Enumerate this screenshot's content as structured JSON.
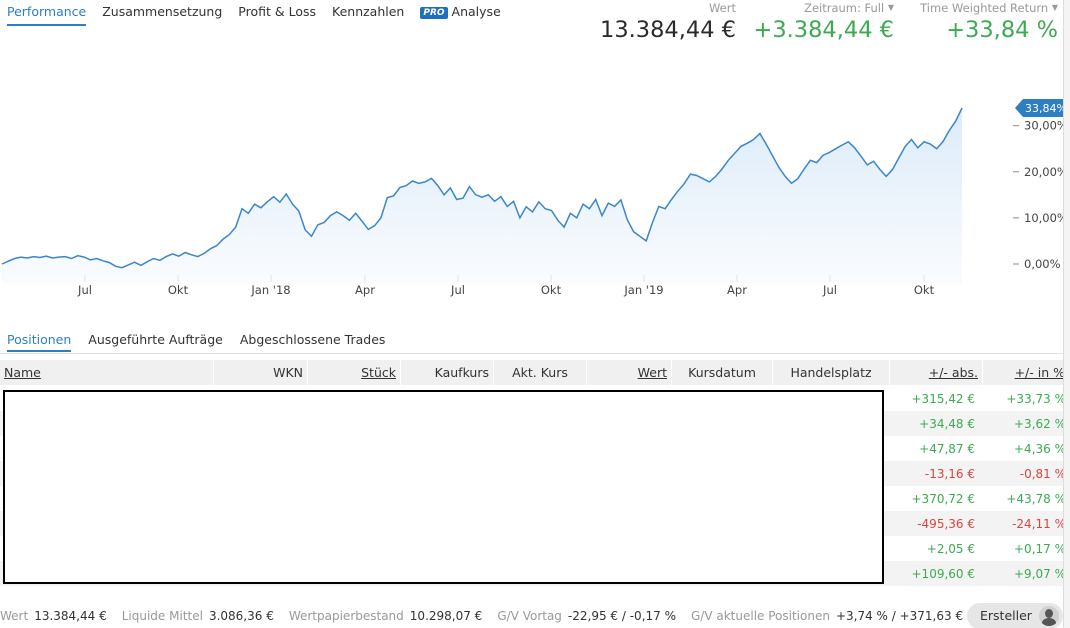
{
  "nav": {
    "tabs": [
      "Performance",
      "Zusammensetzung",
      "Profit & Loss",
      "Kennzahlen"
    ],
    "pro_badge": "PRO",
    "analyse_label": "Analyse"
  },
  "kpis": {
    "wert_label": "Wert",
    "wert_value": "13.384,44 €",
    "zeitraum_label": "Zeitraum: Full",
    "zeitraum_value": "+3.384,44 €",
    "twr_label": "Time Weighted Return",
    "twr_value": "+33,84 %",
    "caret": "▼"
  },
  "chart_data": {
    "type": "area",
    "x_tick_labels": [
      "Jul",
      "Okt",
      "Jan '18",
      "Apr",
      "Jul",
      "Okt",
      "Jan '19",
      "Apr",
      "Jul",
      "Okt"
    ],
    "y_tick_labels": [
      "0,00%",
      "10,00%",
      "20,00%",
      "30,00%"
    ],
    "y_ticks": [
      0,
      10,
      20,
      30
    ],
    "ylim": [
      -2,
      36
    ],
    "last_value_label": "33,84%",
    "line_color": "#3a86cc",
    "fill_color": "#dcebf9",
    "series": [
      {
        "values": [
          0.0,
          0.6,
          1.2,
          1.5,
          1.3,
          1.6,
          1.4,
          1.7,
          1.3,
          1.5,
          1.6,
          1.2,
          1.8,
          1.5,
          0.9,
          1.2,
          0.7,
          0.3,
          -0.5,
          -0.8,
          -0.2,
          0.4,
          -0.3,
          0.5,
          1.2,
          0.8,
          1.6,
          2.2,
          1.7,
          2.5,
          2.0,
          1.6,
          2.3,
          3.3,
          4.0,
          5.4,
          6.4,
          8.0,
          12.0,
          11.0,
          13.0,
          12.2,
          13.5,
          14.6,
          13.4,
          15.2,
          13.0,
          11.5,
          7.4,
          6.0,
          8.5,
          9.0,
          10.5,
          11.3,
          10.5,
          9.5,
          11.0,
          9.3,
          7.5,
          8.3,
          10.0,
          14.4,
          14.8,
          16.6,
          17.0,
          18.0,
          17.5,
          17.8,
          18.6,
          17.0,
          15.0,
          16.5,
          14.0,
          14.3,
          16.8,
          15.0,
          14.5,
          15.0,
          13.6,
          14.6,
          12.5,
          13.6,
          10.0,
          12.4,
          11.3,
          13.5,
          12.0,
          11.6,
          9.5,
          8.0,
          11.0,
          10.0,
          13.0,
          12.0,
          14.0,
          10.5,
          13.2,
          12.5,
          13.9,
          9.6,
          7.0,
          6.0,
          5.0,
          9.0,
          12.5,
          12.0,
          14.0,
          15.8,
          17.4,
          19.5,
          19.2,
          18.5,
          17.8,
          19.0,
          20.6,
          22.5,
          24.0,
          25.5,
          26.2,
          27.0,
          28.3,
          26.0,
          23.5,
          21.0,
          19.0,
          17.5,
          18.5,
          20.6,
          22.5,
          22.0,
          23.6,
          24.2,
          25.0,
          25.8,
          26.5,
          25.2,
          23.4,
          21.5,
          22.3,
          20.5,
          19.0,
          20.5,
          23.0,
          25.5,
          27.0,
          25.2,
          26.5,
          26.0,
          25.0,
          26.6,
          29.0,
          31.0,
          33.84
        ]
      }
    ]
  },
  "positions": {
    "tabs": [
      "Positionen",
      "Ausgeführte Aufträge",
      "Abgeschlossene Trades"
    ],
    "columns": [
      "Name",
      "WKN",
      "Stück",
      "Kaufkurs",
      "Akt. Kurs",
      "Wert",
      "Kursdatum",
      "Handelsplatz",
      "+/- abs.",
      "+/- in %"
    ],
    "rows": [
      {
        "abs": "+315,42 €",
        "pct": "+33,73 %",
        "positive": true
      },
      {
        "abs": "+34,48 €",
        "pct": "+3,62 %",
        "positive": true
      },
      {
        "abs": "+47,87 €",
        "pct": "+4,36 %",
        "positive": true
      },
      {
        "abs": "-13,16 €",
        "pct": "-0,81 %",
        "positive": false
      },
      {
        "abs": "+370,72 €",
        "pct": "+43,78 %",
        "positive": true
      },
      {
        "abs": "-495,36 €",
        "pct": "-24,11 %",
        "positive": false
      },
      {
        "abs": "+2,05 €",
        "pct": "+0,17 %",
        "positive": true
      },
      {
        "abs": "+109,60 €",
        "pct": "+9,07 %",
        "positive": true
      }
    ]
  },
  "footer": {
    "wert_label": "Wert",
    "wert_value": "13.384,44 €",
    "liquide_label": "Liquide Mittel",
    "liquide_value": "3.086,36 €",
    "bestand_label": "Wertpapierbestand",
    "bestand_value": "10.298,07 €",
    "gv_vortag_label": "G/V Vortag",
    "gv_vortag_value": "-22,95 € / -0,17 %",
    "gv_aktuell_label": "G/V aktuelle Positionen",
    "gv_aktuell_value": "+3,74 % / +371,63 €",
    "ersteller_label": "Ersteller"
  }
}
